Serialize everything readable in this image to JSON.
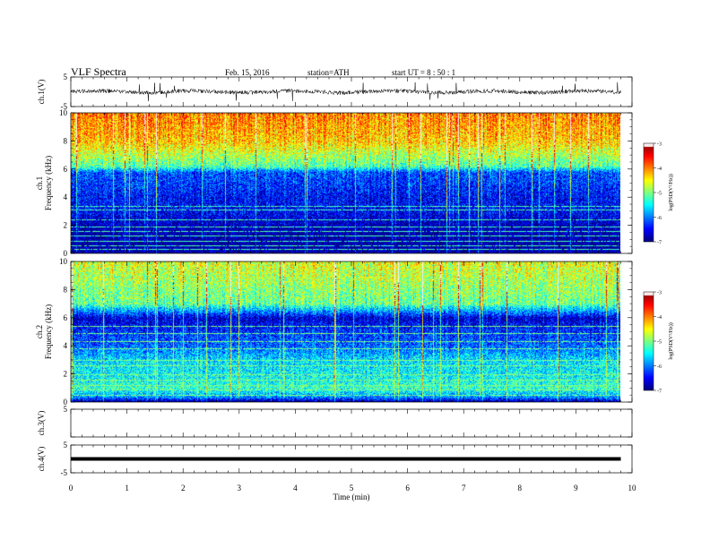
{
  "header": {
    "title": "VLF  Spectra",
    "date": "Feb. 15, 2016",
    "station": "station=ATH",
    "start": "start  UT  =   8  : 50 : 1"
  },
  "chart_data": {
    "type": "heatmap",
    "xlabel": "Time  (min)",
    "xlim": [
      0,
      10
    ],
    "xticks": [
      "0",
      "1",
      "2",
      "3",
      "4",
      "5",
      "6",
      "7",
      "8",
      "9",
      "10"
    ],
    "data_end_min": 9.8,
    "panels": [
      {
        "id": "ch1-waveform",
        "type": "line",
        "ylabel": "ch.1(V)",
        "ylim": [
          -5,
          5
        ],
        "yticks": [
          "5",
          "-5"
        ],
        "baseline": 0,
        "noise_amplitude": 0.7,
        "burst_rate": 0.012,
        "burst_amplitude": 3.5
      },
      {
        "id": "ch1-spectrogram",
        "type": "heatmap",
        "ylabel": [
          "ch.1",
          "Frequency  (kHz)"
        ],
        "ylim": [
          0,
          10
        ],
        "yticks": [
          "0",
          "2",
          "4",
          "6",
          "8",
          "10"
        ],
        "colorbar": {
          "label": "log(PSD(V²/Hz))",
          "range": [
            -7,
            -3
          ],
          "ticks": [
            "-3",
            "-4",
            "-5",
            "-6",
            "-7"
          ]
        },
        "frequency_profile_khz": [
          0,
          1,
          2,
          3,
          4,
          5,
          5.8,
          6.2,
          8,
          10
        ],
        "log_psd_profile": [
          -6.9,
          -6.9,
          -6.8,
          -6.5,
          -6.5,
          -6.3,
          -6.2,
          -5.2,
          -4.3,
          -4.0
        ],
        "tone_lines_khz": [
          0.3,
          0.6,
          0.9,
          1.3,
          1.6,
          1.9,
          2.4,
          3.1,
          3.4
        ],
        "tone_level": -5.2
      },
      {
        "id": "ch2-spectrogram",
        "type": "heatmap",
        "ylabel": [
          "ch.2",
          "Frequency  (kHz)"
        ],
        "ylim": [
          0,
          10
        ],
        "yticks": [
          "0",
          "2",
          "4",
          "6",
          "8",
          "10"
        ],
        "colorbar": {
          "label": "log(PSD(V²/Hz))",
          "range": [
            -7,
            -3
          ],
          "ticks": [
            "-3",
            "-4",
            "-5",
            "-6",
            "-7"
          ]
        },
        "frequency_profile_khz": [
          0,
          0.4,
          1,
          2,
          3,
          4,
          5,
          6,
          7,
          10
        ],
        "log_psd_profile": [
          -7.0,
          -5.9,
          -5.3,
          -5.5,
          -5.6,
          -6.1,
          -6.3,
          -6.7,
          -5.1,
          -4.6
        ],
        "tone_lines_khz": [
          0.5,
          0.9,
          1.2,
          1.6,
          2.0,
          2.6,
          3.0,
          3.8,
          4.3,
          4.9,
          5.4
        ],
        "tone_level": -5.0
      },
      {
        "id": "ch3-waveform",
        "type": "line",
        "ylabel": "ch.3(V)",
        "ylim": [
          -5,
          5
        ],
        "yticks": [
          "5",
          ""
        ],
        "baseline": null
      },
      {
        "id": "ch4-waveform",
        "type": "line",
        "ylabel": "ch.4(V)",
        "ylim": [
          -5,
          5
        ],
        "yticks": [
          "5",
          "-5"
        ],
        "baseline": 0
      }
    ]
  }
}
